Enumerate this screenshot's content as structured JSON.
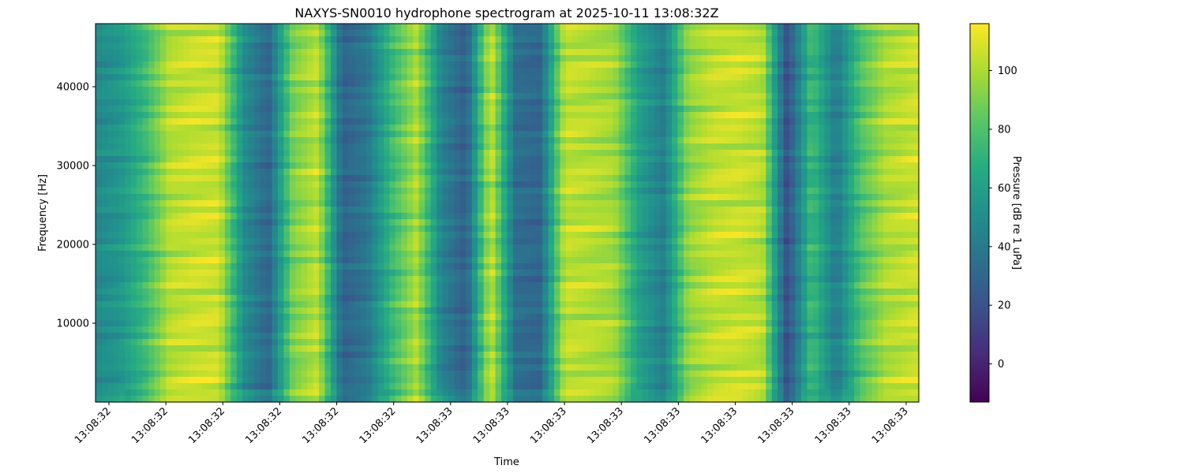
{
  "chart_data": {
    "type": "heatmap",
    "title": "NAXYS-SN0010 hydrophone spectrogram at 2025-10-11 13:08:32Z",
    "xlabel": "Time",
    "ylabel": "Frequency [Hz]",
    "ylim": [
      0,
      48000
    ],
    "x_tick_labels": [
      "13:08:32",
      "13:08:32",
      "13:08:32",
      "13:08:32",
      "13:08:32",
      "13:08:32",
      "13:08:33",
      "13:08:33",
      "13:08:33",
      "13:08:33",
      "13:08:33",
      "13:08:33",
      "13:08:33",
      "13:08:33",
      "13:08:33"
    ],
    "y_ticks": [
      10000,
      20000,
      30000,
      40000
    ],
    "y_tick_labels": [
      "10000",
      "20000",
      "30000",
      "40000"
    ],
    "colorbar": {
      "label": "Pressure [dB re 1 uPa]",
      "colormap": "viridis",
      "range": [
        -13,
        116
      ],
      "ticks": [
        0,
        20,
        40,
        60,
        80,
        100
      ],
      "tick_labels": [
        "0",
        "20",
        "40",
        "60",
        "80",
        "100"
      ]
    },
    "time_profile": {
      "columns_relative_time": [
        0.0,
        0.03,
        0.06,
        0.09,
        0.12,
        0.15,
        0.18,
        0.21,
        0.24,
        0.27,
        0.3,
        0.33,
        0.36,
        0.39,
        0.42,
        0.45,
        0.48,
        0.51,
        0.54,
        0.57,
        0.6,
        0.63,
        0.66,
        0.69,
        0.72,
        0.75,
        0.78,
        0.81,
        0.84,
        0.87,
        0.9,
        0.93,
        0.96,
        1.0
      ],
      "mean_level_db": [
        48,
        55,
        74,
        102,
        106,
        106,
        50,
        30,
        90,
        104,
        28,
        38,
        74,
        100,
        45,
        26,
        106,
        34,
        30,
        104,
        102,
        98,
        60,
        42,
        94,
        104,
        106,
        102,
        18,
        76,
        40,
        80,
        100,
        106
      ]
    }
  }
}
